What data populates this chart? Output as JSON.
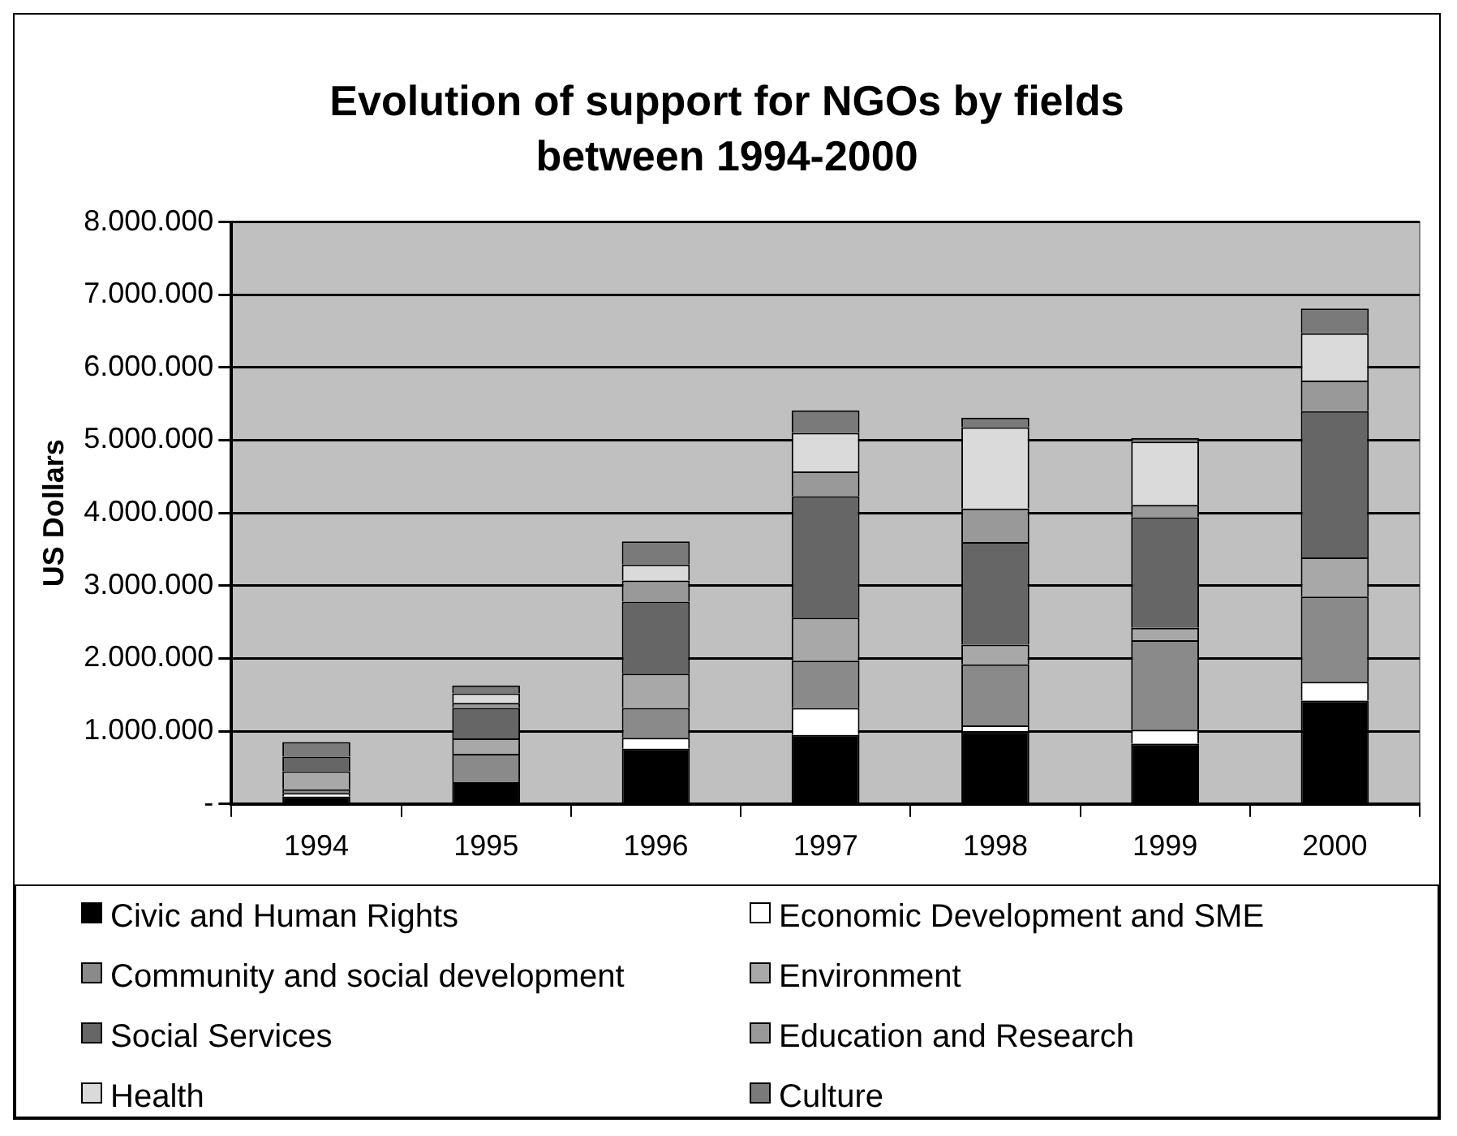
{
  "chart_data": {
    "type": "bar",
    "title": "Evolution of support for NGOs by fields between 1994-2000",
    "ylabel": "US Dollars",
    "categories": [
      "1994",
      "1995",
      "1996",
      "1997",
      "1998",
      "1999",
      "2000"
    ],
    "stacked": true,
    "series": [
      {
        "name": "Civic and Human Rights",
        "color": "#000000",
        "values": [
          100000,
          300000,
          760000,
          950000,
          1000000,
          830000,
          1420000
        ]
      },
      {
        "name": "Economic Development and SME",
        "color": "#ffffff",
        "values": [
          50000,
          0,
          150000,
          370000,
          80000,
          190000,
          260000
        ]
      },
      {
        "name": "Community and social development",
        "color": "#8a8a8a",
        "values": [
          50000,
          390000,
          410000,
          650000,
          840000,
          1230000,
          1170000
        ]
      },
      {
        "name": "Environment",
        "color": "#a8a8a8",
        "values": [
          250000,
          210000,
          470000,
          590000,
          270000,
          170000,
          540000
        ]
      },
      {
        "name": "Social Services",
        "color": "#666666",
        "values": [
          200000,
          420000,
          990000,
          1670000,
          1410000,
          1520000,
          2010000
        ]
      },
      {
        "name": "Education and Research",
        "color": "#999999",
        "values": [
          0,
          70000,
          290000,
          340000,
          460000,
          170000,
          420000
        ]
      },
      {
        "name": "Health",
        "color": "#dadada",
        "values": [
          0,
          130000,
          220000,
          530000,
          1120000,
          870000,
          650000
        ]
      },
      {
        "name": "Culture",
        "color": "#7a7a7a",
        "values": [
          200000,
          110000,
          320000,
          310000,
          130000,
          50000,
          340000
        ]
      }
    ],
    "ylim": [
      0,
      8000000
    ],
    "yticks": [
      {
        "value": 0,
        "label": "-"
      },
      {
        "value": 1000000,
        "label": "1.000.000"
      },
      {
        "value": 2000000,
        "label": "2.000.000"
      },
      {
        "value": 3000000,
        "label": "3.000.000"
      },
      {
        "value": 4000000,
        "label": "4.000.000"
      },
      {
        "value": 5000000,
        "label": "5.000.000"
      },
      {
        "value": 6000000,
        "label": "6.000.000"
      },
      {
        "value": 7000000,
        "label": "7.000.000"
      },
      {
        "value": 8000000,
        "label": "8.000.000"
      }
    ],
    "grid": "y",
    "legend": "bottom"
  }
}
